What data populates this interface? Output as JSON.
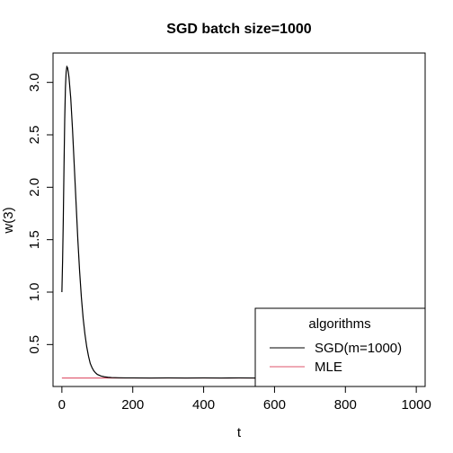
{
  "chart_data": {
    "type": "line",
    "title": "SGD batch size=1000",
    "xlabel": "t",
    "ylabel": "w(3)",
    "xlim": [
      -25,
      1025
    ],
    "ylim": [
      0.1,
      3.28
    ],
    "x_ticks": [
      0,
      200,
      400,
      600,
      800,
      1000
    ],
    "y_ticks": [
      0.5,
      1.0,
      1.5,
      2.0,
      2.5,
      3.0
    ],
    "x_tick_labels": [
      "0",
      "200",
      "400",
      "600",
      "800",
      "1000"
    ],
    "y_tick_labels": [
      "0.5",
      "1.0",
      "1.5",
      "2.0",
      "2.5",
      "3.0"
    ],
    "grid": false,
    "legend": {
      "title": "algorithms",
      "position": "bottom-right",
      "entries": [
        {
          "label": "SGD(m=1000)",
          "color": "#000000"
        },
        {
          "label": "MLE",
          "color": "#DF536B"
        }
      ]
    },
    "series": [
      {
        "name": "SGD(m=1000)",
        "color": "#000000",
        "x": [
          0,
          2,
          4,
          6,
          8,
          10,
          12,
          14,
          16,
          18,
          20,
          25,
          30,
          35,
          40,
          45,
          50,
          55,
          60,
          65,
          70,
          75,
          80,
          85,
          90,
          95,
          100,
          110,
          120,
          130,
          140,
          150,
          160,
          180,
          200,
          250,
          300,
          350,
          400,
          450,
          500,
          550,
          600,
          650,
          700,
          750,
          800,
          850,
          900,
          950,
          1000
        ],
        "y": [
          1.0,
          1.3,
          1.7,
          2.2,
          2.65,
          2.95,
          3.1,
          3.15,
          3.14,
          3.1,
          3.05,
          2.85,
          2.55,
          2.2,
          1.85,
          1.5,
          1.2,
          0.95,
          0.75,
          0.6,
          0.48,
          0.39,
          0.32,
          0.28,
          0.25,
          0.23,
          0.215,
          0.2,
          0.192,
          0.188,
          0.185,
          0.184,
          0.183,
          0.182,
          0.182,
          0.181,
          0.182,
          0.181,
          0.182,
          0.181,
          0.182,
          0.181,
          0.182,
          0.181,
          0.182,
          0.181,
          0.182,
          0.181,
          0.182,
          0.181,
          0.182
        ]
      },
      {
        "name": "MLE",
        "color": "#DF536B",
        "x": [
          0,
          1000
        ],
        "y": [
          0.181,
          0.181
        ]
      }
    ]
  }
}
